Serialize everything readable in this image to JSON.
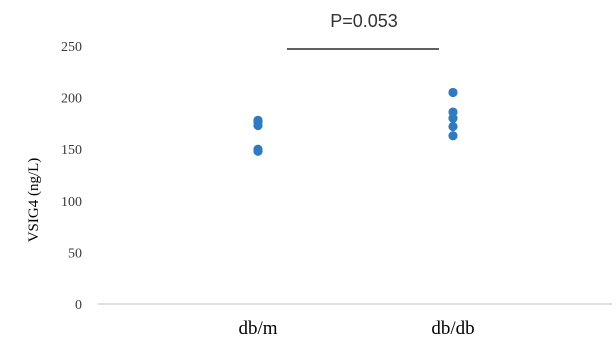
{
  "chart_data": {
    "type": "scatter",
    "categories": [
      "db/m",
      "db/db"
    ],
    "ylabel": "VSIG4 (ng/L)",
    "ylim": [
      0,
      250
    ],
    "yticks": [
      0,
      50,
      100,
      150,
      200,
      250
    ],
    "series": [
      {
        "category": "db/m",
        "values": [
          178,
          176,
          173,
          150,
          148
        ]
      },
      {
        "category": "db/db",
        "values": [
          205,
          186,
          180,
          172,
          163
        ]
      }
    ],
    "annotation": "P=0.053",
    "grid": false,
    "colors": {
      "marker": "#2f7bbf",
      "axis": "#bfbfbf",
      "bracket": "#000000"
    }
  }
}
